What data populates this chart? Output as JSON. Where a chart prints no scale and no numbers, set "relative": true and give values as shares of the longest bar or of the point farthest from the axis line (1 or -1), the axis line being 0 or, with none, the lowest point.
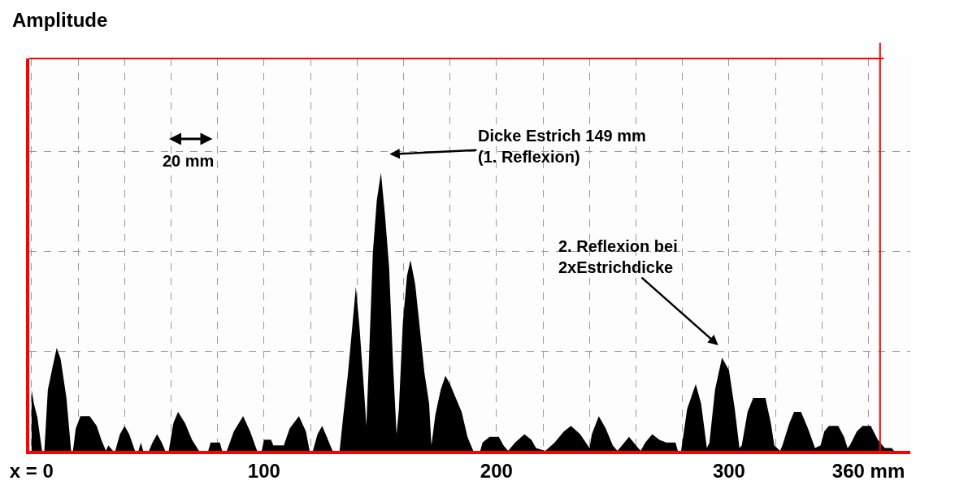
{
  "chart_data": {
    "type": "area",
    "relative": true,
    "ref_lines": [
      {
        "axis": "x",
        "value": 365,
        "color": "#ff0000"
      }
    ],
    "xlim": [
      -1,
      378
    ],
    "xticks": [
      {
        "value": 0,
        "label": "x = 0"
      },
      {
        "value": 20,
        "label": null
      },
      {
        "value": 40,
        "label": null
      },
      {
        "value": 60,
        "label": null
      },
      {
        "value": 80,
        "label": null
      },
      100,
      {
        "value": 120,
        "label": null
      },
      {
        "value": 140,
        "label": null
      },
      {
        "value": 160,
        "label": null
      },
      {
        "value": 180,
        "label": null
      },
      200,
      {
        "value": 220,
        "label": null
      },
      {
        "value": 240,
        "label": null
      },
      {
        "value": 260,
        "label": null
      },
      {
        "value": 280,
        "label": null
      },
      300,
      {
        "value": 320,
        "label": null
      },
      {
        "value": 340,
        "label": null
      },
      {
        "value": 360,
        "label": "360 mm"
      }
    ],
    "grid": true,
    "annotations": [
      "Amplitude",
      "Dicke Estrich 149 mm\n(1. Reflexion)",
      "2. Reflexion bei\n2xEstrichdicke",
      "20 mm"
    ],
    "series": [
      {
        "color": "#000000",
        "x": [
          0,
          1,
          2.5,
          4.5,
          5.5,
          7,
          9,
          10.8,
          12.5,
          15,
          17,
          17.8,
          19,
          21,
          25,
          28,
          30,
          32,
          33,
          35,
          36,
          38,
          40,
          42,
          44.5,
          46,
          47,
          48,
          50.5,
          52,
          54,
          56,
          57.5,
          59,
          61,
          63,
          66,
          69,
          72,
          76,
          77,
          81,
          82,
          84,
          87,
          91,
          94,
          97,
          99,
          100,
          103,
          104,
          108.5,
          111,
          115,
          118,
          119.6,
          121,
          123,
          125,
          127,
          128.5,
          129.5,
          132.5,
          134,
          136,
          138,
          139.5,
          141,
          143,
          144,
          145,
          146.8,
          148.5,
          150.3,
          152,
          153.8,
          155.5,
          157,
          158,
          159.7,
          161.5,
          163,
          165,
          167.4,
          169,
          171,
          172,
          173.7,
          176,
          178,
          180,
          182.5,
          185,
          187.5,
          190,
          193,
          194,
          197,
          201,
          203,
          205,
          208,
          212,
          215,
          217,
          221,
          225,
          229,
          232,
          236,
          240,
          241,
          244,
          247,
          250,
          252,
          257,
          260,
          262,
          264,
          267,
          270,
          273,
          277,
          278,
          279.4,
          282,
          285.7,
          288,
          290.5,
          291.6,
          294,
          297,
          300,
          302.5,
          304.5,
          305.5,
          308,
          310.4,
          315.7,
          318,
          319.5,
          322,
          323,
          326,
          328,
          331,
          334,
          337,
          339.4,
          341,
          343,
          347,
          349.5,
          351,
          352,
          355,
          357.5,
          361,
          364,
          367,
          370,
          371
        ],
        "values": [
          0.22,
          0.17,
          0.12,
          0,
          0,
          0.22,
          0.3,
          0.37,
          0.33,
          0.19,
          0,
          0,
          0.08,
          0.125,
          0.125,
          0.09,
          0.04,
          0,
          0.02,
          0,
          0,
          0.06,
          0.09,
          0.06,
          0,
          0,
          0.03,
          0,
          0,
          0.03,
          0.06,
          0.03,
          0,
          0,
          0.1,
          0.14,
          0.1,
          0.04,
          0,
          0,
          0.03,
          0.03,
          0,
          0,
          0.07,
          0.125,
          0.07,
          0,
          0,
          0.04,
          0.04,
          0.02,
          0.02,
          0.08,
          0.125,
          0.07,
          0,
          0,
          0.06,
          0.09,
          0.05,
          0.02,
          0,
          0,
          0.12,
          0.27,
          0.45,
          0.59,
          0.45,
          0.22,
          0.09,
          0.3,
          0.71,
          0.9,
          1.0,
          0.85,
          0.66,
          0.31,
          0.06,
          0.15,
          0.46,
          0.63,
          0.685,
          0.6,
          0.41,
          0.28,
          0.17,
          0.02,
          0.13,
          0.22,
          0.27,
          0.24,
          0.19,
          0.14,
          0.05,
          0,
          0,
          0.03,
          0.05,
          0.05,
          0.02,
          0,
          0.03,
          0.06,
          0.04,
          0.01,
          0,
          0.03,
          0.07,
          0.09,
          0.06,
          0.01,
          0.06,
          0.125,
          0.08,
          0.02,
          0,
          0.05,
          0.02,
          0,
          0.03,
          0.06,
          0.04,
          0.03,
          0.03,
          0,
          0,
          0.15,
          0.24,
          0.17,
          0.01,
          0.03,
          0.22,
          0.335,
          0.29,
          0.15,
          0.01,
          0.02,
          0.14,
          0.19,
          0.19,
          0.1,
          0.02,
          0,
          0.02,
          0.1,
          0.14,
          0.14,
          0.08,
          0.01,
          0.02,
          0.07,
          0.09,
          0.09,
          0.05,
          0.01,
          0.02,
          0.07,
          0.09,
          0.09,
          0.04,
          0.01,
          0.01,
          0
        ]
      }
    ]
  }
}
